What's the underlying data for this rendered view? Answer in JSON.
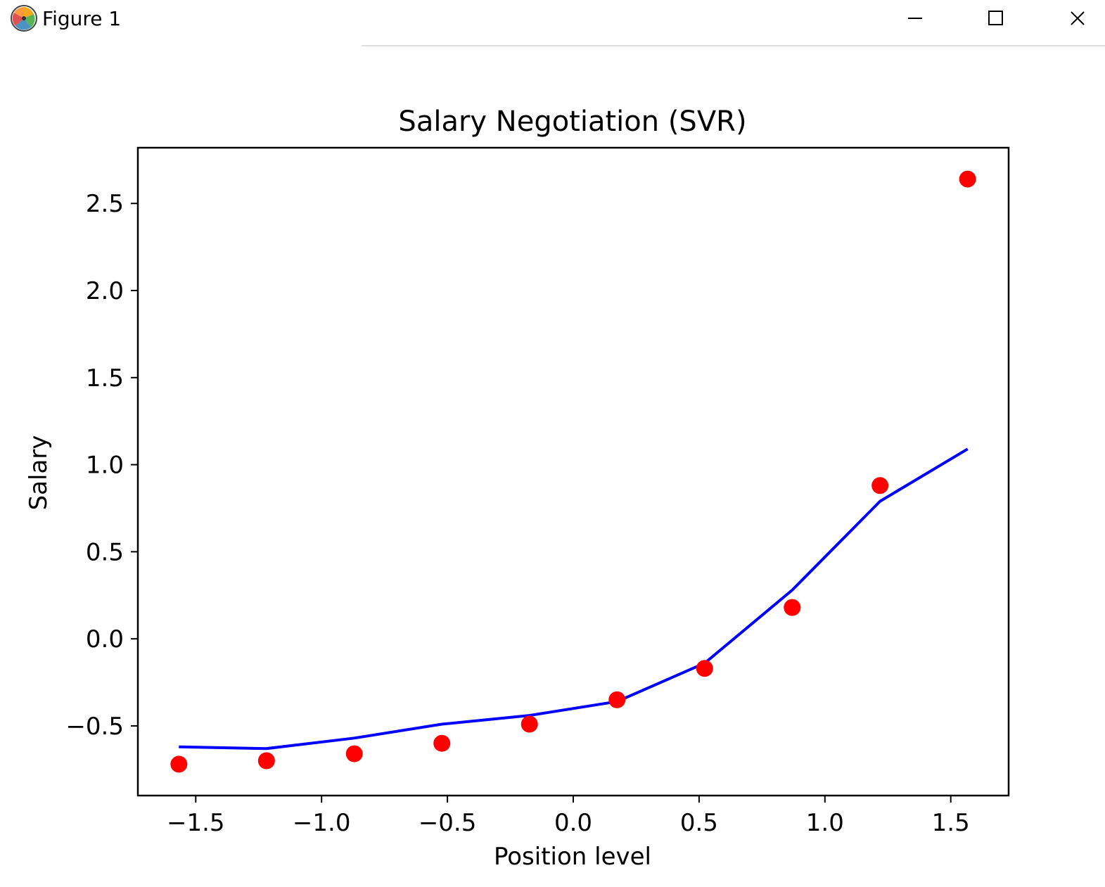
{
  "window": {
    "title": "Figure 1",
    "controls": {
      "minimize": "minimize-icon",
      "maximize": "maximize-icon",
      "close": "close-icon"
    },
    "app_icon": "matplotlib-logo-icon"
  },
  "colors": {
    "scatter": "#ff0000",
    "line": "#0000ff",
    "axes": "#000000"
  },
  "chart_data": {
    "type": "scatter",
    "title": "Salary Negotiation (SVR)",
    "xlabel": "Position level",
    "ylabel": "Salary",
    "xlim": [
      -1.73,
      1.73
    ],
    "ylim": [
      -0.9,
      2.82
    ],
    "xticks": [
      -1.5,
      -1.0,
      -0.5,
      0.0,
      0.5,
      1.0,
      1.5
    ],
    "xtick_labels": [
      "−1.5",
      "−1.0",
      "−0.5",
      "0.0",
      "0.5",
      "1.0",
      "1.5"
    ],
    "yticks": [
      -0.5,
      0.0,
      0.5,
      1.0,
      1.5,
      2.0,
      2.5
    ],
    "ytick_labels": [
      "−0.5",
      "0.0",
      "0.5",
      "1.0",
      "1.5",
      "2.0",
      "2.5"
    ],
    "grid": false,
    "series": [
      {
        "kind": "scatter",
        "color": "#ff0000",
        "x": [
          -1.567,
          -1.219,
          -0.87,
          -0.522,
          -0.174,
          0.174,
          0.522,
          0.87,
          1.219,
          1.567
        ],
        "y": [
          -0.72,
          -0.7,
          -0.66,
          -0.6,
          -0.49,
          -0.35,
          -0.17,
          0.18,
          0.88,
          2.64
        ]
      },
      {
        "kind": "line",
        "color": "#0000ff",
        "x": [
          -1.567,
          -1.219,
          -0.87,
          -0.522,
          -0.174,
          0.174,
          0.522,
          0.87,
          1.219,
          1.567
        ],
        "y": [
          -0.62,
          -0.63,
          -0.57,
          -0.49,
          -0.44,
          -0.36,
          -0.14,
          0.28,
          0.79,
          1.09
        ]
      }
    ]
  }
}
